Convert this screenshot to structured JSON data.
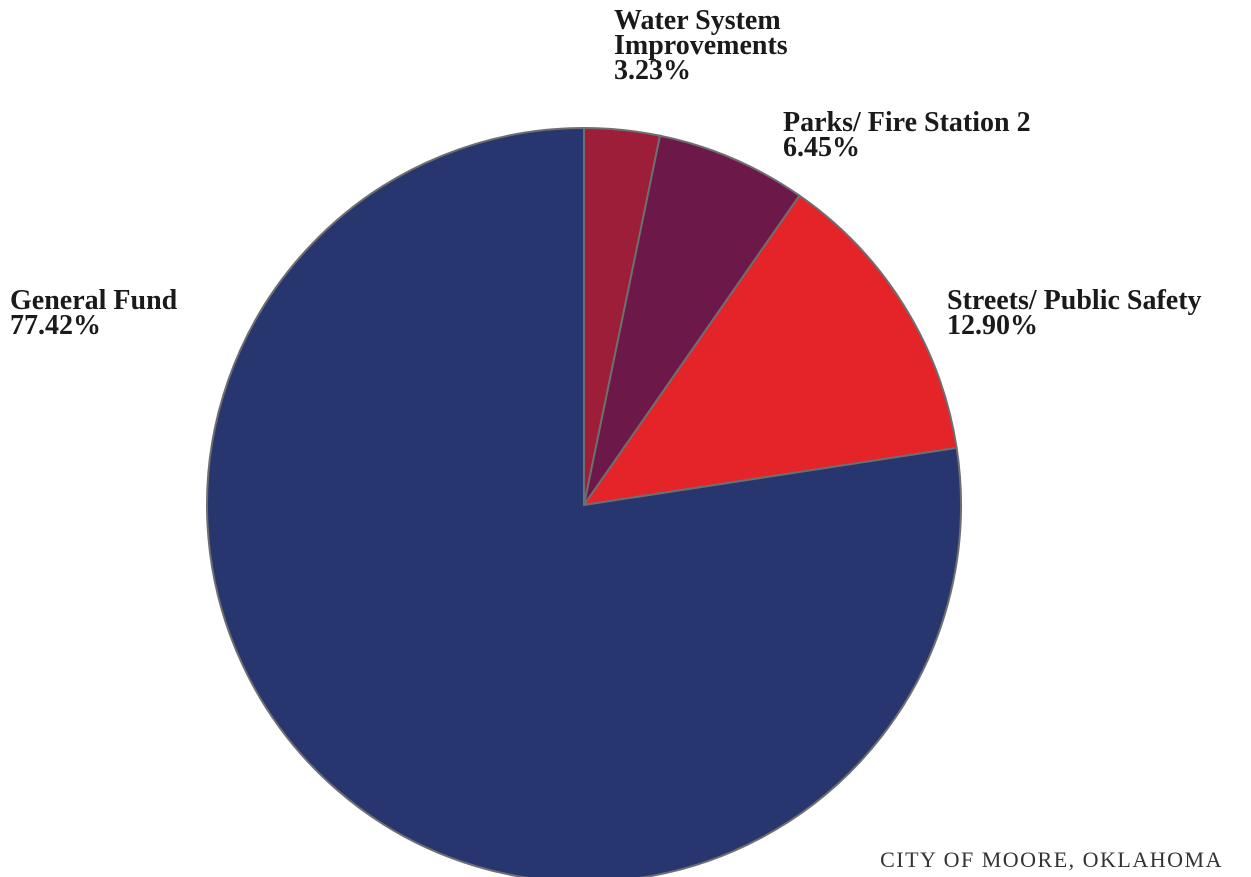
{
  "chart_data": {
    "type": "pie",
    "title": "",
    "start_angle_deg": 0,
    "direction": "clockwise",
    "slices": [
      {
        "label_lines": [
          "Water System",
          "Improvements"
        ],
        "value": 3.23,
        "value_text": "3.23%",
        "color": "#9c1e38"
      },
      {
        "label_lines": [
          "Parks/ Fire Station 2"
        ],
        "value": 6.45,
        "value_text": "6.45%",
        "color": "#6c1848"
      },
      {
        "label_lines": [
          "Streets/ Public Safety"
        ],
        "value": 12.9,
        "value_text": "12.90%",
        "color": "#e42428"
      },
      {
        "label_lines": [
          "General Fund"
        ],
        "value": 77.42,
        "value_text": "77.42%",
        "color": "#283670"
      }
    ],
    "stroke_color": "#6e6e6e"
  },
  "footer": {
    "caption": "CITY OF MOORE, OKLAHOMA"
  }
}
